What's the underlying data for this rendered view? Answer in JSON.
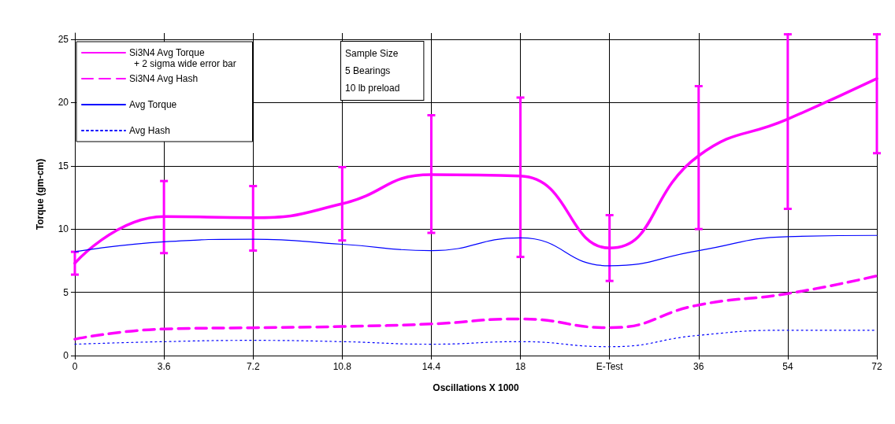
{
  "chart_data": {
    "type": "line",
    "xlabel": "Oscillations X 1000",
    "ylabel": "Torque (gm-cm)",
    "categories": [
      "0",
      "3.6",
      "7.2",
      "10.8",
      "14.4",
      "18",
      "E-Test",
      "36",
      "54",
      "72"
    ],
    "series": [
      {
        "name": "Si3N4 Avg Torque",
        "color": "#ff00ff",
        "line_style": "solid",
        "values": [
          7.3,
          11.0,
          10.9,
          12.0,
          14.3,
          14.2,
          8.5,
          15.8,
          18.7,
          21.9
        ],
        "errors": [
          [
            6.4,
            8.2
          ],
          [
            8.1,
            13.8
          ],
          [
            8.3,
            13.4
          ],
          [
            9.1,
            14.9
          ],
          [
            9.7,
            19.0
          ],
          [
            7.8,
            20.4
          ],
          [
            5.9,
            11.1
          ],
          [
            10.0,
            21.3
          ],
          [
            11.6,
            25.4
          ],
          [
            16.0,
            25.4
          ]
        ]
      },
      {
        "name": "Si3N4 Avg Hash",
        "color": "#ff00ff",
        "line_style": "dashed",
        "values": [
          1.3,
          2.1,
          2.2,
          2.3,
          2.5,
          2.9,
          2.2,
          4.0,
          4.9,
          6.3
        ]
      },
      {
        "name": "Avg Torque",
        "color": "#0000ff",
        "line_style": "solid",
        "values": [
          8.2,
          9.0,
          9.2,
          8.8,
          8.3,
          9.3,
          7.1,
          8.3,
          9.4,
          9.5
        ]
      },
      {
        "name": "Avg Hash",
        "color": "#0000ff",
        "line_style": "dotted",
        "values": [
          0.9,
          1.1,
          1.2,
          1.1,
          0.9,
          1.1,
          0.7,
          1.6,
          2.0,
          2.0
        ]
      }
    ],
    "ylim": [
      0,
      25.5
    ],
    "yticks": [
      0,
      5,
      10,
      15,
      20,
      25
    ],
    "grid": true,
    "legend": "top left",
    "marker": "none",
    "annotations": [
      "+ 2 sigma wide error bar",
      "Sample Size\n5 Bearings\n10 lb preload"
    ]
  }
}
